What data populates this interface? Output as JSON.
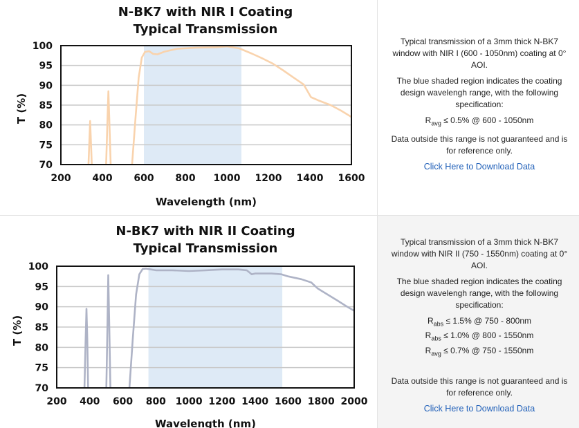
{
  "panels": [
    {
      "info": {
        "description": "Typical transmission of a 3mm thick N-BK7 window with NIR I (600 - 1050nm) coating at 0° AOI.",
        "shaded_note": "The blue shaded region indicates the coating design wavelengh range, with the following specification:",
        "specs": [
          {
            "sym": "R",
            "sub": "avg",
            "text": " ≤ 0.5% @ 600 - 1050nm"
          }
        ],
        "disclaimer": "Data outside this range is not guaranteed and is for reference only.",
        "download_link": "Click Here to Download Data"
      }
    },
    {
      "info": {
        "description": "Typical transmission of a 3mm thick N-BK7 window with NIR II (750 - 1550nm) coating at 0° AOI.",
        "shaded_note": "The blue shaded region indicates the coating design wavelengh range, with the following specification:",
        "specs": [
          {
            "sym": "R",
            "sub": "abs",
            "text": " ≤ 1.5% @ 750 - 800nm"
          },
          {
            "sym": "R",
            "sub": "abs",
            "text": " ≤ 1.0% @ 800 - 1550nm"
          },
          {
            "sym": "R",
            "sub": "avg",
            "text": " ≤ 0.7% @ 750 - 1550nm"
          }
        ],
        "disclaimer": "Data outside this range is not guaranteed and is for reference only.",
        "download_link": "Click Here to Download Data"
      }
    }
  ],
  "colors": {
    "series1": "#f9d3ad",
    "series2": "#aeb3c6",
    "band": "#deeaf6",
    "grid": "#c9c9c9",
    "link": "#1f5fb8"
  },
  "chart_data": [
    {
      "type": "line",
      "title": [
        "N-BK7 with NIR I Coating",
        "Typical Transmission"
      ],
      "xlabel": "Wavelength (nm)",
      "ylabel": "T (%)",
      "xlim": [
        200,
        1600
      ],
      "ylim": [
        70,
        100
      ],
      "xticks": [
        200,
        400,
        600,
        800,
        1000,
        1200,
        1400,
        1600
      ],
      "yticks": [
        70,
        75,
        80,
        85,
        90,
        95,
        100
      ],
      "band": [
        600,
        1070
      ],
      "grid": true,
      "series": [
        {
          "name": "NIR I Coating",
          "color": "#f9d3ad",
          "segments": [
            [
              [
                333,
                70
              ],
              [
                341,
                81
              ],
              [
                349,
                70
              ]
            ],
            [
              [
                418,
                70
              ],
              [
                425,
                82
              ],
              [
                429,
                88.5
              ],
              [
                433,
                82
              ],
              [
                440,
                70
              ]
            ],
            [
              [
                543,
                70
              ],
              [
                560,
                82
              ],
              [
                575,
                92
              ],
              [
                590,
                97
              ],
              [
                605,
                98.4
              ],
              [
                625,
                98.6
              ],
              [
                645,
                97.9
              ],
              [
                665,
                97.8
              ],
              [
                700,
                98.5
              ],
              [
                760,
                99.2
              ],
              [
                850,
                99.5
              ],
              [
                950,
                99.6
              ],
              [
                1000,
                99.8
              ],
              [
                1060,
                99.3
              ],
              [
                1120,
                98
              ],
              [
                1170,
                96.8
              ],
              [
                1220,
                95.5
              ],
              [
                1270,
                93.8
              ],
              [
                1320,
                92
              ],
              [
                1370,
                90.2
              ],
              [
                1405,
                87
              ],
              [
                1440,
                86.2
              ],
              [
                1500,
                85
              ],
              [
                1550,
                83.6
              ],
              [
                1600,
                82
              ]
            ]
          ]
        }
      ]
    },
    {
      "type": "line",
      "title": [
        "N-BK7 with NIR II Coating",
        "Typical Transmission"
      ],
      "xlabel": "Wavelength (nm)",
      "ylabel": "T (%)",
      "xlim": [
        200,
        2000
      ],
      "ylim": [
        70,
        100
      ],
      "xticks": [
        200,
        400,
        600,
        800,
        1000,
        1200,
        1400,
        1600,
        1800,
        2000
      ],
      "yticks": [
        70,
        75,
        80,
        85,
        90,
        95,
        100
      ],
      "band": [
        755,
        1565
      ],
      "grid": true,
      "series": [
        {
          "name": "NIR II Coating",
          "color": "#aeb3c6",
          "segments": [
            [
              [
                368,
                70
              ],
              [
                375,
                82
              ],
              [
                380,
                89.5
              ],
              [
                385,
                82
              ],
              [
                390,
                70
              ]
            ],
            [
              [
                500,
                70
              ],
              [
                507,
                85
              ],
              [
                512,
                97.8
              ],
              [
                518,
                85
              ],
              [
                525,
                70
              ]
            ],
            [
              [
                640,
                70
              ],
              [
                660,
                82
              ],
              [
                680,
                93
              ],
              [
                700,
                98
              ],
              [
                720,
                99.3
              ],
              [
                740,
                99.4
              ],
              [
                800,
                99
              ],
              [
                900,
                99
              ],
              [
                1000,
                98.8
              ],
              [
                1100,
                99
              ],
              [
                1200,
                99.2
              ],
              [
                1300,
                99.2
              ],
              [
                1350,
                99
              ],
              [
                1380,
                98
              ],
              [
                1400,
                98.2
              ],
              [
                1500,
                98.2
              ],
              [
                1560,
                98
              ],
              [
                1600,
                97.5
              ],
              [
                1680,
                96.8
              ],
              [
                1740,
                96
              ],
              [
                1780,
                94.5
              ],
              [
                1800,
                94
              ],
              [
                1840,
                93
              ],
              [
                1900,
                91.5
              ],
              [
                1950,
                90.2
              ],
              [
                2000,
                89
              ]
            ]
          ]
        }
      ]
    }
  ]
}
